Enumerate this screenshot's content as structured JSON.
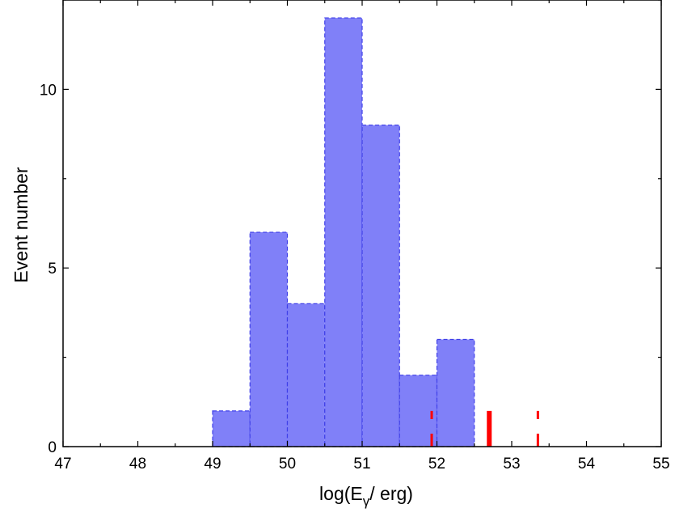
{
  "chart_data": {
    "type": "bar",
    "xlabel": "log(Eγ / erg)",
    "xlabel_parts": {
      "main": "log(E",
      "sub": "γ",
      "rest": "/ erg)"
    },
    "ylabel": "Event number",
    "xlim": [
      47,
      55
    ],
    "ylim": [
      0,
      12.5
    ],
    "x_ticks": [
      "47",
      "48",
      "49",
      "50",
      "51",
      "52",
      "53",
      "54",
      "55"
    ],
    "y_ticks": [
      "0",
      "5",
      "10"
    ],
    "grid": false,
    "bin_width": 0.5,
    "bins": [
      {
        "x0": 49.0,
        "x1": 49.5,
        "count": 1
      },
      {
        "x0": 49.5,
        "x1": 50.0,
        "count": 6
      },
      {
        "x0": 50.0,
        "x1": 50.5,
        "count": 4
      },
      {
        "x0": 50.5,
        "x1": 51.0,
        "count": 12
      },
      {
        "x0": 51.0,
        "x1": 51.5,
        "count": 9
      },
      {
        "x0": 51.5,
        "x1": 52.0,
        "count": 2
      },
      {
        "x0": 52.0,
        "x1": 52.5,
        "count": 3
      }
    ],
    "markers": [
      {
        "x": 51.93,
        "style": "dashed"
      },
      {
        "x": 52.7,
        "style": "solid"
      },
      {
        "x": 53.35,
        "style": "dashed"
      }
    ],
    "marker_height": 1,
    "colors": {
      "bar_fill": "#8080f8",
      "bar_edge": "#4040e8",
      "marker": "#ff0000",
      "axis": "#000000"
    }
  }
}
